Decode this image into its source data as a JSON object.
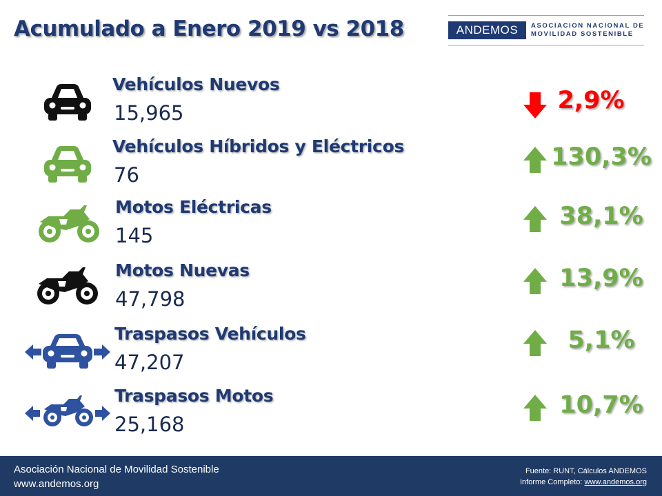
{
  "header": {
    "title": "Acumulado a Enero 2019 vs 2018",
    "logo_short": "ANDEMOS",
    "logo_line1": "ASOCIACION NACIONAL DE",
    "logo_line2": "MOVILIDAD SOSTENIBLE"
  },
  "colors": {
    "brand": "#1f3a73",
    "up": "#70ad47",
    "down": "#ff0000",
    "footer": "#1f3a64"
  },
  "rows": [
    {
      "label": "Vehículos Nuevos",
      "value": "15,965",
      "change": "2,9%",
      "direction": "down",
      "icon": "car-icon"
    },
    {
      "label": "Vehículos Híbridos y Eléctricos",
      "value": "76",
      "change": "130,3%",
      "direction": "up",
      "icon": "green-car-icon"
    },
    {
      "label": "Motos Eléctricas",
      "value": "145",
      "change": "38,1%",
      "direction": "up",
      "icon": "green-motorcycle-icon"
    },
    {
      "label": "Motos Nuevas",
      "value": "47,798",
      "change": "13,9%",
      "direction": "up",
      "icon": "motorcycle-icon"
    },
    {
      "label": "Traspasos Vehículos",
      "value": "47,207",
      "change": "5,1%",
      "direction": "up",
      "icon": "car-transfer-icon"
    },
    {
      "label": "Traspasos Motos",
      "value": "25,168",
      "change": "10,7%",
      "direction": "up",
      "icon": "motorcycle-transfer-icon"
    }
  ],
  "footer": {
    "org": "Asociación Nacional de Movilidad Sostenible",
    "site": "www.andemos.org",
    "source": "Fuente: RUNT, Cálculos ANDEMOS",
    "report_label": "Informe Completo: ",
    "report_link": "www.andemos.org"
  }
}
